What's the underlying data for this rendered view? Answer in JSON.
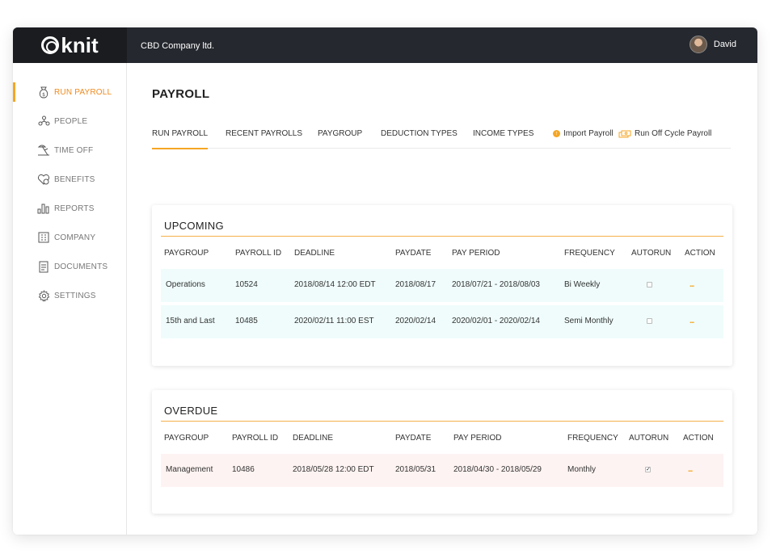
{
  "app": {
    "logo_text": "knit",
    "company_name": "CBD Company ltd.",
    "user_name": "David"
  },
  "sidebar": {
    "items": [
      {
        "label": "RUN PAYROLL",
        "icon": "money-bag-icon",
        "active": true
      },
      {
        "label": "PEOPLE",
        "icon": "people-icon"
      },
      {
        "label": "TIME OFF",
        "icon": "beach-icon"
      },
      {
        "label": "BENEFITS",
        "icon": "benefits-icon"
      },
      {
        "label": "REPORTS",
        "icon": "bar-chart-icon"
      },
      {
        "label": "COMPANY",
        "icon": "building-icon"
      },
      {
        "label": "DOCUMENTS",
        "icon": "document-icon"
      },
      {
        "label": "SETTINGS",
        "icon": "gear-icon"
      }
    ]
  },
  "page": {
    "title": "PAYROLL"
  },
  "tabs": {
    "items": [
      "RUN PAYROLL",
      "RECENT PAYROLLS",
      "PAYGROUP",
      "DEDUCTION TYPES",
      "INCOME TYPES"
    ],
    "active": "RUN PAYROLL",
    "import_label": "Import Payroll",
    "off_cycle_label": "Run Off Cycle Payroll"
  },
  "upcoming": {
    "title": "UPCOMING",
    "headers": [
      "PAYGROUP",
      "PAYROLL ID",
      "DEADLINE",
      "PAYDATE",
      "PAY PERIOD",
      "FREQUENCY",
      "AUTORUN",
      "ACTION"
    ],
    "rows": [
      {
        "paygroup": "Operations",
        "payroll_id": "10524",
        "deadline": "2018/08/14 12:00 EDT",
        "paydate": "2018/08/17",
        "pay_period": "2018/07/21 - 2018/08/03",
        "frequency": "Bi Weekly",
        "autorun": false,
        "action": "..."
      },
      {
        "paygroup": "15th and Last",
        "payroll_id": "10485",
        "deadline": "2020/02/11 11:00 EST",
        "paydate": "2020/02/14",
        "pay_period": "2020/02/01 - 2020/02/14",
        "frequency": "Semi Monthly",
        "autorun": false,
        "action": "..."
      }
    ]
  },
  "overdue": {
    "title": "OVERDUE",
    "headers": [
      "PAYGROUP",
      "PAYROLL ID",
      "DEADLINE",
      "PAYDATE",
      "PAY PERIOD",
      "FREQUENCY",
      "AUTORUN",
      "ACTION"
    ],
    "rows": [
      {
        "paygroup": "Management",
        "payroll_id": "10486",
        "deadline": "2018/05/28 12:00 EDT",
        "paydate": "2018/05/31",
        "pay_period": "2018/04/30 - 2018/05/29",
        "frequency": "Monthly",
        "autorun": true,
        "action": "..."
      }
    ]
  },
  "colors": {
    "accent": "#f5a623",
    "topbar": "#25282e",
    "upcoming_row": "#effcfb",
    "overdue_row": "#fdf3f2"
  }
}
